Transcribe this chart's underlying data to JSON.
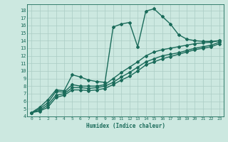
{
  "xlabel": "Humidex (Indice chaleur)",
  "xlim": [
    -0.5,
    23.5
  ],
  "ylim": [
    4,
    18.8
  ],
  "xticks": [
    0,
    1,
    2,
    3,
    4,
    5,
    6,
    7,
    8,
    9,
    10,
    11,
    12,
    13,
    14,
    15,
    16,
    17,
    18,
    19,
    20,
    21,
    22,
    23
  ],
  "yticks": [
    4,
    5,
    6,
    7,
    8,
    9,
    10,
    11,
    12,
    13,
    14,
    15,
    16,
    17,
    18
  ],
  "bg_color": "#cce8e0",
  "grid_color": "#aaccC4",
  "line_color": "#1a6b5a",
  "marker": "D",
  "marker_size": 2.0,
  "line_width": 1.0,
  "lines": [
    {
      "x": [
        0,
        1,
        2,
        3,
        4,
        5,
        6,
        7,
        8,
        9,
        10,
        11,
        12,
        13,
        14,
        15,
        16,
        17,
        18,
        19,
        20,
        21,
        22,
        23
      ],
      "y": [
        4.5,
        5.2,
        6.2,
        7.5,
        7.4,
        9.5,
        9.2,
        8.8,
        8.6,
        8.5,
        15.8,
        16.2,
        16.4,
        13.2,
        17.9,
        18.2,
        17.2,
        16.2,
        14.8,
        14.2,
        14.0,
        13.9,
        13.9,
        14.0
      ]
    },
    {
      "x": [
        0,
        1,
        2,
        3,
        4,
        5,
        6,
        7,
        8,
        9,
        10,
        11,
        12,
        13,
        14,
        15,
        16,
        17,
        18,
        19,
        20,
        21,
        22,
        23
      ],
      "y": [
        4.5,
        5.0,
        5.8,
        7.3,
        7.2,
        8.2,
        8.0,
        8.0,
        8.0,
        8.2,
        9.0,
        9.8,
        10.5,
        11.2,
        12.0,
        12.5,
        12.8,
        13.0,
        13.2,
        13.4,
        13.6,
        13.7,
        13.8,
        14.0
      ]
    },
    {
      "x": [
        0,
        1,
        2,
        3,
        4,
        5,
        6,
        7,
        8,
        9,
        10,
        11,
        12,
        13,
        14,
        15,
        16,
        17,
        18,
        19,
        20,
        21,
        22,
        23
      ],
      "y": [
        4.5,
        4.8,
        5.5,
        6.8,
        7.0,
        7.8,
        7.8,
        7.7,
        7.8,
        8.0,
        8.5,
        9.2,
        9.8,
        10.5,
        11.2,
        11.6,
        12.0,
        12.2,
        12.4,
        12.7,
        13.0,
        13.2,
        13.4,
        13.8
      ]
    },
    {
      "x": [
        0,
        1,
        2,
        3,
        4,
        5,
        6,
        7,
        8,
        9,
        10,
        11,
        12,
        13,
        14,
        15,
        16,
        17,
        18,
        19,
        20,
        21,
        22,
        23
      ],
      "y": [
        4.5,
        4.7,
        5.2,
        6.5,
        6.8,
        7.5,
        7.5,
        7.4,
        7.5,
        7.7,
        8.2,
        8.8,
        9.3,
        10.0,
        10.8,
        11.2,
        11.6,
        11.9,
        12.2,
        12.5,
        12.8,
        13.0,
        13.2,
        13.6
      ]
    }
  ]
}
